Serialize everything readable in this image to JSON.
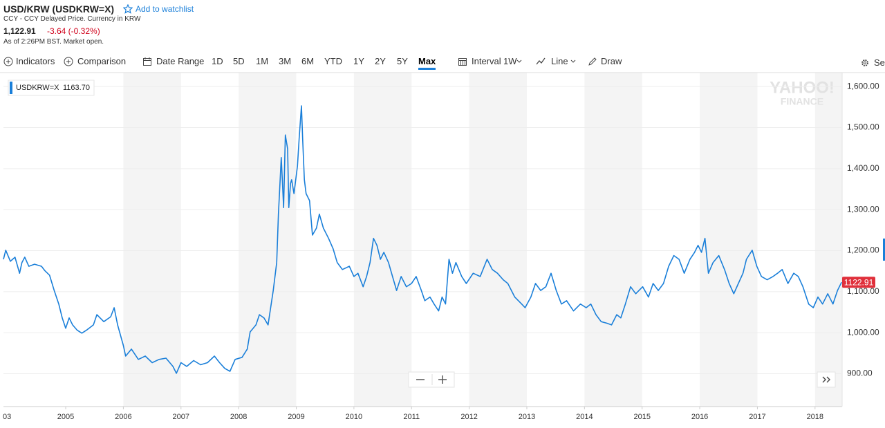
{
  "header": {
    "title": "USD/KRW (USDKRW=X)",
    "watchlist": "Add to watchlist",
    "subtitle": "CCY - CCY Delayed Price. Currency in KRW",
    "price": "1,122.91",
    "change": "-3.64 (-0.32%)",
    "as_of": "As of 2:26PM BST. Market open."
  },
  "toolbar": {
    "indicators": "Indicators",
    "comparison": "Comparison",
    "date_range": "Date Range",
    "ranges": [
      "1D",
      "5D",
      "1M",
      "3M",
      "6M",
      "YTD",
      "1Y",
      "2Y",
      "5Y",
      "Max"
    ],
    "selected_range": 9,
    "interval": "Interval",
    "interval_value": "1W",
    "line": "Line",
    "draw": "Draw",
    "settings": "Set"
  },
  "chart_data": {
    "type": "line",
    "x": [
      2003.92,
      2003.96,
      2004.04,
      2004.12,
      2004.2,
      2004.24,
      2004.29,
      2004.36,
      2004.46,
      2004.58,
      2004.64,
      2004.72,
      2004.8,
      2004.88,
      2004.94,
      2005.0,
      2005.06,
      2005.12,
      2005.2,
      2005.28,
      2005.36,
      2005.48,
      2005.54,
      2005.66,
      2005.78,
      2005.84,
      2005.9,
      2006.0,
      2006.04,
      2006.14,
      2006.26,
      2006.38,
      2006.5,
      2006.62,
      2006.74,
      2006.86,
      2006.92,
      2007.0,
      2007.1,
      2007.22,
      2007.34,
      2007.46,
      2007.58,
      2007.67,
      2007.76,
      2007.85,
      2007.94,
      2008.06,
      2008.15,
      2008.2,
      2008.3,
      2008.36,
      2008.44,
      2008.51,
      2008.6,
      2008.66,
      2008.69,
      2008.74,
      2008.78,
      2008.81,
      2008.85,
      2008.87,
      2008.9,
      2008.92,
      2008.96,
      2009.02,
      2009.05,
      2009.09,
      2009.11,
      2009.14,
      2009.17,
      2009.23,
      2009.28,
      2009.35,
      2009.4,
      2009.47,
      2009.56,
      2009.64,
      2009.71,
      2009.8,
      2009.92,
      2010.0,
      2010.07,
      2010.16,
      2010.22,
      2010.28,
      2010.34,
      2010.4,
      2010.46,
      2010.52,
      2010.6,
      2010.67,
      2010.74,
      2010.82,
      2010.91,
      2011.0,
      2011.08,
      2011.17,
      2011.23,
      2011.32,
      2011.39,
      2011.47,
      2011.53,
      2011.59,
      2011.65,
      2011.71,
      2011.77,
      2011.87,
      2011.95,
      2012.07,
      2012.19,
      2012.31,
      2012.4,
      2012.49,
      2012.59,
      2012.67,
      2012.79,
      2012.91,
      2012.97,
      2013.07,
      2013.15,
      2013.24,
      2013.33,
      2013.42,
      2013.51,
      2013.6,
      2013.69,
      2013.81,
      2013.93,
      2014.03,
      2014.11,
      2014.2,
      2014.29,
      2014.39,
      2014.47,
      2014.56,
      2014.63,
      2014.71,
      2014.8,
      2014.89,
      2015.01,
      2015.11,
      2015.19,
      2015.28,
      2015.37,
      2015.46,
      2015.55,
      2015.64,
      2015.73,
      2015.83,
      2015.91,
      2015.97,
      2016.03,
      2016.09,
      2016.15,
      2016.23,
      2016.33,
      2016.43,
      2016.51,
      2016.59,
      2016.67,
      2016.75,
      2016.81,
      2016.91,
      2016.99,
      2017.07,
      2017.17,
      2017.27,
      2017.35,
      2017.43,
      2017.53,
      2017.63,
      2017.71,
      2017.79,
      2017.89,
      2017.97,
      2018.05,
      2018.13,
      2018.22,
      2018.31,
      2018.39,
      2018.46
    ],
    "series": [
      {
        "name": "USDKRW=X",
        "color": "#1a7fd9",
        "values": [
          1179,
          1201,
          1174,
          1184,
          1145,
          1171,
          1184,
          1162,
          1167,
          1162,
          1151,
          1140,
          1103,
          1070,
          1036,
          1011,
          1036,
          1019,
          1006,
          999,
          1006,
          1019,
          1044,
          1027,
          1039,
          1061,
          1019,
          969,
          943,
          960,
          935,
          943,
          927,
          935,
          938,
          918,
          901,
          927,
          918,
          932,
          922,
          927,
          943,
          927,
          913,
          906,
          935,
          940,
          960,
          1002,
          1019,
          1044,
          1036,
          1019,
          1103,
          1171,
          1289,
          1427,
          1305,
          1482,
          1448,
          1305,
          1364,
          1373,
          1339,
          1406,
          1474,
          1553,
          1474,
          1373,
          1339,
          1322,
          1238,
          1255,
          1289,
          1255,
          1230,
          1204,
          1171,
          1154,
          1162,
          1137,
          1145,
          1112,
          1137,
          1171,
          1230,
          1213,
          1179,
          1196,
          1171,
          1137,
          1103,
          1137,
          1112,
          1120,
          1137,
          1103,
          1078,
          1087,
          1070,
          1053,
          1087,
          1070,
          1179,
          1145,
          1171,
          1137,
          1120,
          1145,
          1137,
          1179,
          1154,
          1145,
          1129,
          1120,
          1087,
          1070,
          1061,
          1087,
          1120,
          1103,
          1112,
          1145,
          1103,
          1070,
          1078,
          1053,
          1070,
          1061,
          1070,
          1044,
          1027,
          1023,
          1019,
          1044,
          1036,
          1070,
          1112,
          1095,
          1112,
          1087,
          1120,
          1103,
          1120,
          1162,
          1188,
          1179,
          1145,
          1179,
          1196,
          1213,
          1196,
          1230,
          1145,
          1171,
          1188,
          1154,
          1120,
          1095,
          1120,
          1145,
          1179,
          1201,
          1162,
          1137,
          1129,
          1137,
          1145,
          1154,
          1120,
          1145,
          1137,
          1112,
          1070,
          1061,
          1087,
          1070,
          1095,
          1070,
          1103,
          1123
        ]
      }
    ],
    "xlim": [
      2003.92,
      2018.47
    ],
    "ylim": [
      820,
      1634
    ],
    "xticks": [
      2005,
      2006,
      2007,
      2008,
      2009,
      2010,
      2011,
      2012,
      2013,
      2014,
      2015,
      2016,
      2017,
      2018
    ],
    "yticks": [
      {
        "value": 900,
        "label": "900.00"
      },
      {
        "value": 1000,
        "label": "1,000.00"
      },
      {
        "value": 1100,
        "label": "1,100.00"
      },
      {
        "value": 1200,
        "label": "1,200.00"
      },
      {
        "value": 1300,
        "label": "1,300.00"
      },
      {
        "value": 1400,
        "label": "1,400.00"
      },
      {
        "value": 1500,
        "label": "1,500.00"
      },
      {
        "value": 1600,
        "label": "1,600.00"
      }
    ],
    "grid": true,
    "x_edge_label": "03",
    "legend_value": "1163.70",
    "last_label": "1122.91",
    "watermark": [
      "YAHOO!",
      "FINANCE"
    ]
  }
}
